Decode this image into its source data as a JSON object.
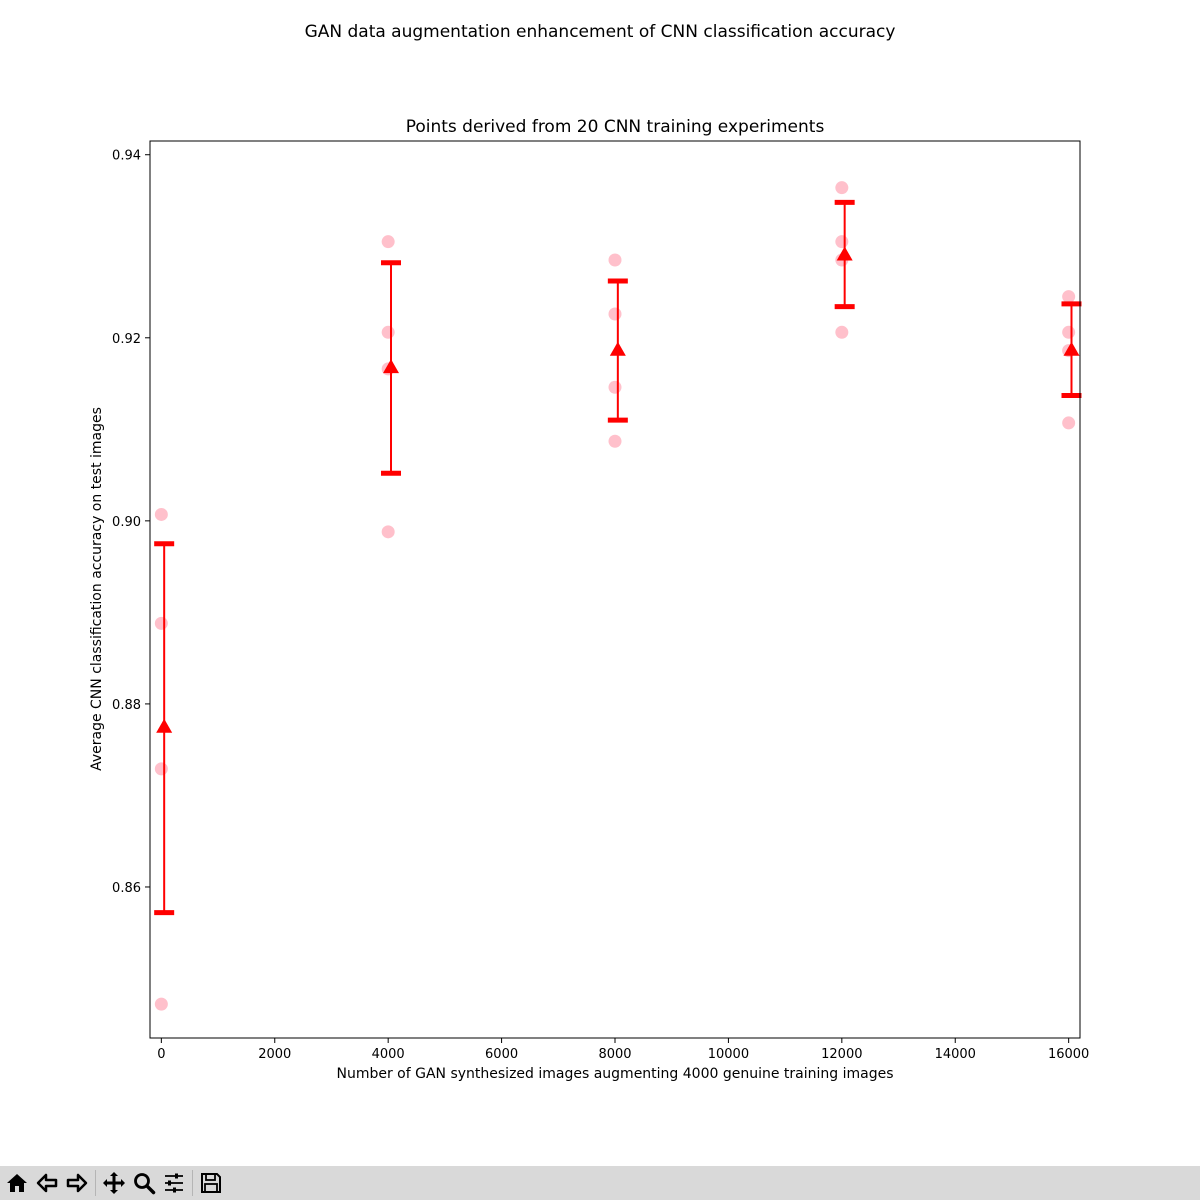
{
  "figure": {
    "suptitle": "GAN data augmentation enhancement of CNN classification accuracy"
  },
  "chart_data": {
    "type": "scatter",
    "title": "Points derived from 20 CNN training experiments",
    "xlabel": "Number of GAN synthesized images augmenting 4000 genuine training images",
    "ylabel": "Average CNN classification accuracy on test images",
    "xlim": [
      -200,
      16200
    ],
    "ylim": [
      0.8435,
      0.9415
    ],
    "xticks": [
      0,
      2000,
      4000,
      6000,
      8000,
      10000,
      12000,
      14000,
      16000
    ],
    "yticks": [
      0.86,
      0.88,
      0.9,
      0.92,
      0.94
    ],
    "ytick_labels": [
      "0.86",
      "0.88",
      "0.90",
      "0.92",
      "0.94"
    ],
    "grid": false,
    "series": [
      {
        "kind": "points",
        "color": "#ffc0cb",
        "points": [
          {
            "x": 0,
            "y": 0.9007
          },
          {
            "x": 0,
            "y": 0.8888
          },
          {
            "x": 0,
            "y": 0.8729
          },
          {
            "x": 0,
            "y": 0.8472
          },
          {
            "x": 4000,
            "y": 0.9305
          },
          {
            "x": 4000,
            "y": 0.9206
          },
          {
            "x": 4000,
            "y": 0.9166
          },
          {
            "x": 4000,
            "y": 0.8988
          },
          {
            "x": 8000,
            "y": 0.9285
          },
          {
            "x": 8000,
            "y": 0.9226
          },
          {
            "x": 8000,
            "y": 0.9146
          },
          {
            "x": 8000,
            "y": 0.9087
          },
          {
            "x": 12000,
            "y": 0.9364
          },
          {
            "x": 12000,
            "y": 0.9305
          },
          {
            "x": 12000,
            "y": 0.9285
          },
          {
            "x": 12000,
            "y": 0.9206
          },
          {
            "x": 16000,
            "y": 0.9245
          },
          {
            "x": 16000,
            "y": 0.9206
          },
          {
            "x": 16000,
            "y": 0.9186
          },
          {
            "x": 16000,
            "y": 0.9107
          }
        ]
      },
      {
        "kind": "mean_errorbar",
        "color": "#ff0000",
        "x_offset": 50,
        "points": [
          {
            "x": 0,
            "y": 0.8775,
            "low": 0.8572,
            "high": 0.8975
          },
          {
            "x": 4000,
            "y": 0.9168,
            "low": 0.9052,
            "high": 0.9282
          },
          {
            "x": 8000,
            "y": 0.9187,
            "low": 0.911,
            "high": 0.9262
          },
          {
            "x": 12000,
            "y": 0.9291,
            "low": 0.9234,
            "high": 0.9348
          },
          {
            "x": 16000,
            "y": 0.9187,
            "low": 0.9137,
            "high": 0.9237
          }
        ]
      }
    ]
  },
  "toolbar": {
    "buttons": [
      {
        "name": "home-icon"
      },
      {
        "name": "back-arrow-icon"
      },
      {
        "name": "forward-arrow-icon"
      },
      {
        "name": "pan-move-icon"
      },
      {
        "name": "zoom-magnifier-icon"
      },
      {
        "name": "configure-sliders-icon"
      },
      {
        "name": "save-floppy-icon"
      }
    ]
  }
}
